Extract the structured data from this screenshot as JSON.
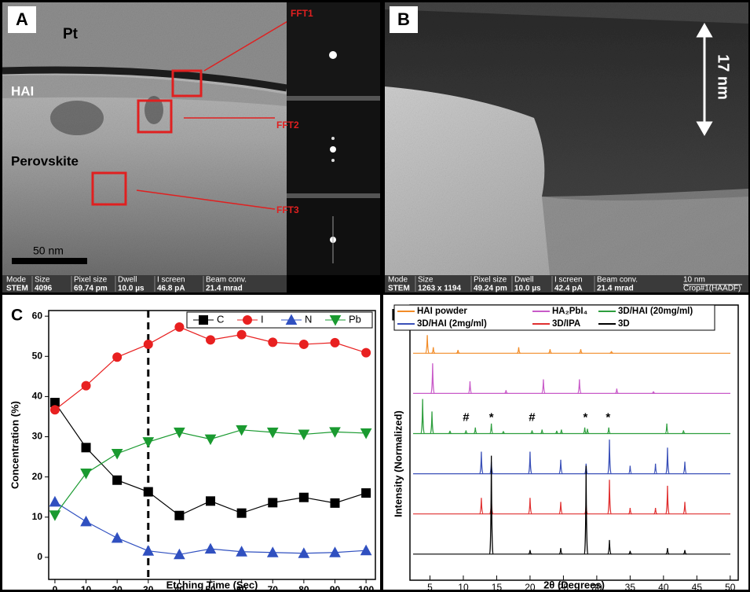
{
  "panels": {
    "A": {
      "label": "A",
      "layers": [
        "Pt",
        "HAI",
        "Perovskite"
      ],
      "fft": [
        "FFT1",
        "FFT2",
        "FFT3"
      ],
      "scale": "50 nm",
      "info": [
        [
          "Mode",
          "STEM"
        ],
        [
          "Size",
          "4096"
        ],
        [
          "Pixel size",
          "69.74 pm"
        ],
        [
          "Dwell",
          "10.0 µs"
        ],
        [
          "I screen",
          "46.8 pA"
        ],
        [
          "Beam conv.",
          "21.4 mrad"
        ]
      ]
    },
    "B": {
      "label": "B",
      "thickness": "17 nm",
      "scale": "10 nm",
      "crop": "Crop#1(HAADF)",
      "info": [
        [
          "Mode",
          "STEM"
        ],
        [
          "Size",
          "1263 x 1194"
        ],
        [
          "Pixel size",
          "49.24 pm"
        ],
        [
          "Dwell",
          "10.0 µs"
        ],
        [
          "I screen",
          "42.4 pA"
        ],
        [
          "Beam conv.",
          "21.4 mrad"
        ]
      ]
    }
  },
  "chart_data": [
    {
      "type": "line",
      "panel": "C",
      "xlabel": "Etching Time (Sec)",
      "ylabel": "Concentration (%)",
      "x": [
        0,
        10,
        20,
        30,
        40,
        50,
        60,
        70,
        80,
        90,
        100
      ],
      "series": [
        {
          "name": "C",
          "color": "#000000",
          "marker": "square",
          "values": [
            38.5,
            27.3,
            19.2,
            16.3,
            10.4,
            14.0,
            11.0,
            13.6,
            14.9,
            13.5,
            16.0
          ]
        },
        {
          "name": "I",
          "color": "#e82020",
          "marker": "circle",
          "values": [
            36.7,
            42.7,
            49.8,
            53.0,
            57.3,
            54.1,
            55.4,
            53.5,
            53.0,
            53.4,
            50.9
          ]
        },
        {
          "name": "N",
          "color": "#3050c0",
          "marker": "triangle",
          "values": [
            13.8,
            8.9,
            4.8,
            1.6,
            0.7,
            2.1,
            1.4,
            1.2,
            1.0,
            1.2,
            1.7
          ]
        },
        {
          "name": "Pb",
          "color": "#1a9a30",
          "marker": "triangle-down",
          "values": [
            10.5,
            20.9,
            25.8,
            28.7,
            31.1,
            29.4,
            31.7,
            31.1,
            30.6,
            31.2,
            30.9
          ]
        }
      ],
      "vline": 30,
      "xlim": [
        -2,
        103
      ],
      "ylim": [
        -5.5,
        61.4
      ],
      "xticks": [
        0,
        10,
        20,
        30,
        40,
        50,
        60,
        70,
        80,
        90,
        100
      ],
      "yticks": [
        0,
        10,
        20,
        30,
        40,
        50,
        60
      ],
      "legend": "top-right"
    },
    {
      "type": "xrd",
      "panel": "D",
      "xlabel": "2θ (Degrees)",
      "ylabel": "Intensity (Normalized)",
      "series": [
        {
          "name": "HAI powder",
          "color": "#f28c28",
          "offset": 5,
          "peaks": [
            4.6,
            5.5,
            9.2,
            18.3,
            23,
            27.6,
            32.2
          ],
          "heights": [
            0.45,
            0.15,
            0.08,
            0.15,
            0.1,
            0.1,
            0.05
          ]
        },
        {
          "name": "HA₂PbI₄",
          "color": "#c85ac8",
          "offset": 4,
          "peaks": [
            5.4,
            11,
            16.4,
            22,
            27.4,
            33,
            38.5
          ],
          "heights": [
            0.75,
            0.3,
            0.08,
            0.35,
            0.35,
            0.12,
            0.05
          ]
        },
        {
          "name": "3D/HAI (20mg/ml)",
          "color": "#2e9e3e",
          "offset": 3,
          "peaks": [
            3.9,
            5.3,
            8,
            10.4,
            11.8,
            14.2,
            16,
            20.3,
            21.8,
            24,
            24.7,
            28.2,
            28.6,
            31.8,
            40.5,
            43
          ],
          "heights": [
            0.86,
            0.55,
            0.07,
            0.08,
            0.15,
            0.25,
            0.06,
            0.08,
            0.1,
            0.07,
            0.1,
            0.15,
            0.12,
            0.15,
            0.25,
            0.08
          ]
        },
        {
          "name": "3D/HAI (2mg/ml)",
          "color": "#3a50b8",
          "offset": 2,
          "peaks": [
            12.7,
            14.2,
            20,
            24.6,
            28.4,
            31.9,
            35,
            38.8,
            40.6,
            43.2
          ],
          "heights": [
            0.55,
            0.3,
            0.55,
            0.35,
            0.25,
            0.85,
            0.2,
            0.25,
            0.65,
            0.3
          ]
        },
        {
          "name": "3D/IPA",
          "color": "#e03030",
          "offset": 1,
          "peaks": [
            12.7,
            14.2,
            20,
            24.6,
            28.4,
            31.9,
            35,
            38.8,
            40.6,
            43.2
          ],
          "heights": [
            0.4,
            0.35,
            0.4,
            0.3,
            0.25,
            0.85,
            0.15,
            0.15,
            0.7,
            0.3
          ]
        },
        {
          "name": "3D",
          "color": "#000000",
          "offset": 0,
          "peaks": [
            14.2,
            20,
            24.6,
            28.4,
            31.9,
            35,
            40.6,
            43.2
          ],
          "heights": [
            2.45,
            0.1,
            0.15,
            2.2,
            0.35,
            0.08,
            0.15,
            0.1
          ]
        }
      ],
      "annotations": [
        {
          "text": "#",
          "x": 10.4
        },
        {
          "text": "*",
          "x": 14.2
        },
        {
          "text": "#",
          "x": 20.3
        },
        {
          "text": "*",
          "x": 28.3
        },
        {
          "text": "*",
          "x": 31.7
        }
      ],
      "annotation_series": 2,
      "xlim": [
        2,
        51.2
      ],
      "ylim": [
        -0.65,
        6.2
      ],
      "xticks": [
        5,
        10,
        15,
        20,
        25,
        30,
        35,
        40,
        45,
        50
      ],
      "legend": "top"
    }
  ]
}
